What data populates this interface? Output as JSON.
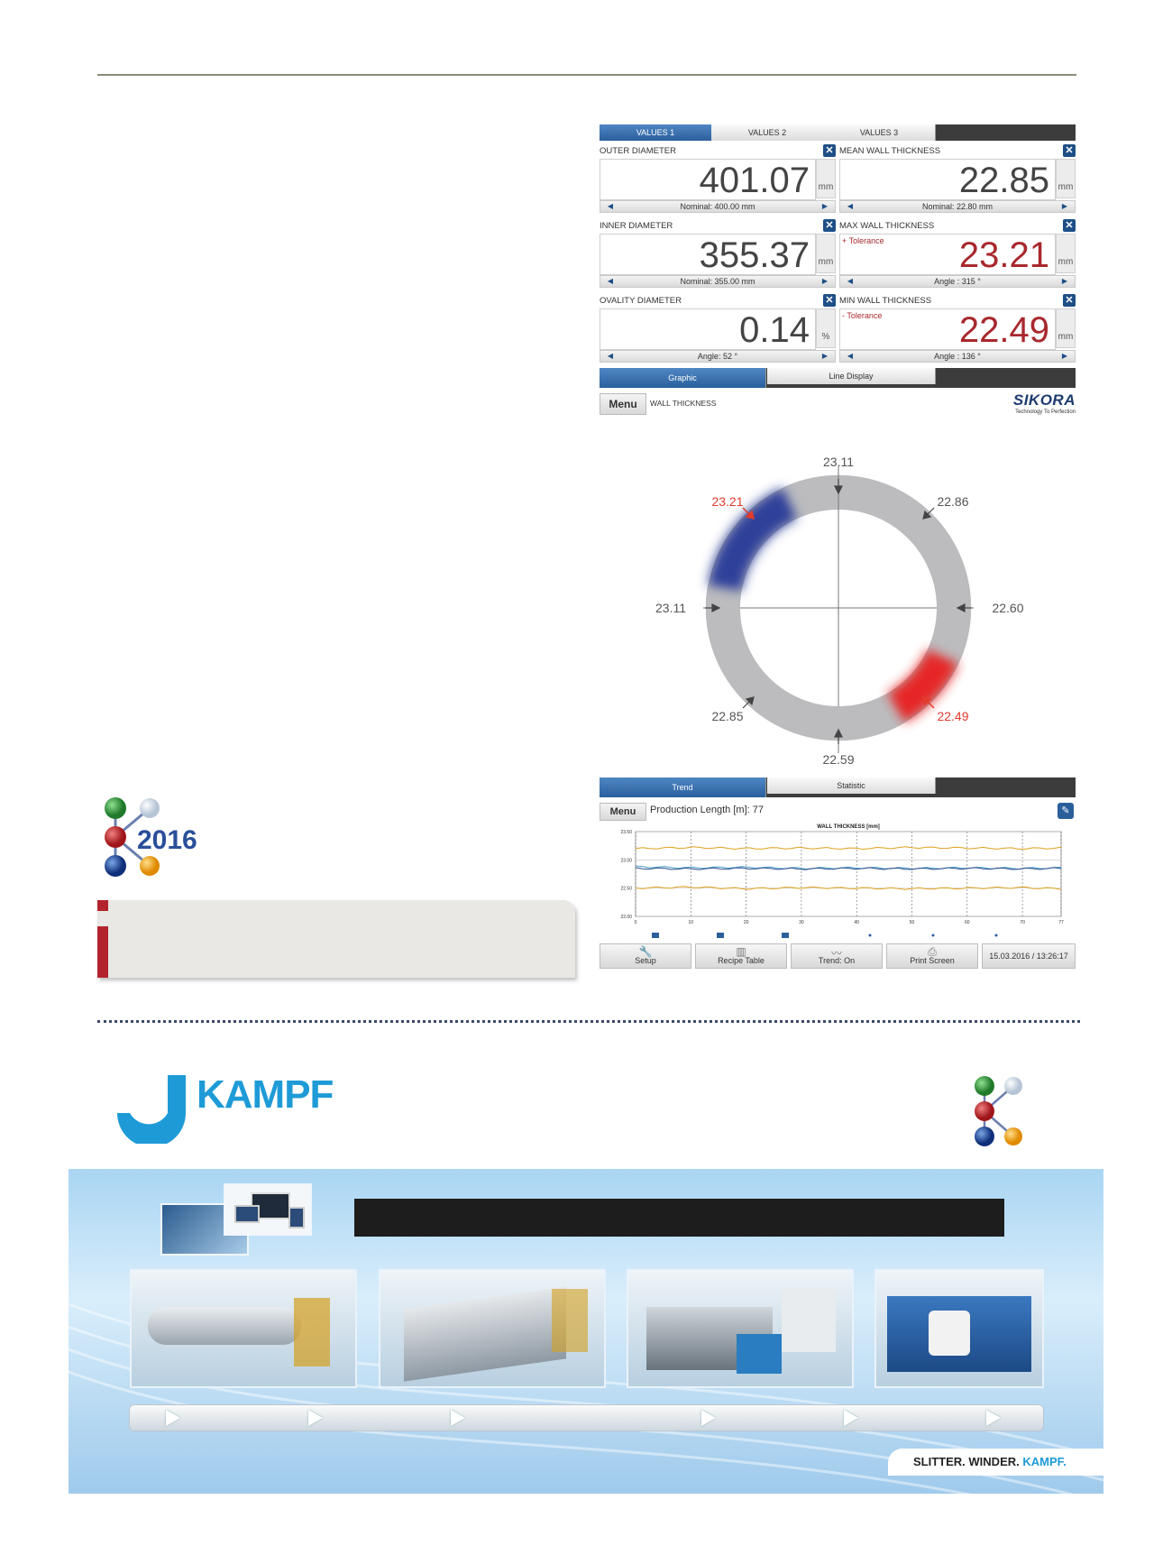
{
  "values_panel": {
    "tabs": [
      "VALUES 1",
      "VALUES 2",
      "VALUES 3"
    ],
    "boxes": [
      {
        "label": "OUTER DIAMETER",
        "value": "401.07",
        "unit": "mm",
        "sub": "Nominal: 400.00 mm",
        "tolerance": ""
      },
      {
        "label": "MEAN WALL THICKNESS",
        "value": "22.85",
        "unit": "mm",
        "sub": "Nominal: 22.80 mm",
        "tolerance": ""
      },
      {
        "label": "INNER DIAMETER",
        "value": "355.37",
        "unit": "mm",
        "sub": "Nominal: 355.00 mm",
        "tolerance": ""
      },
      {
        "label": "MAX WALL THICKNESS",
        "value": "23.21",
        "unit": "mm",
        "sub": "Angle : 315 °",
        "tolerance": "+ Tolerance"
      },
      {
        "label": "OVALITY DIAMETER",
        "value": "0.14",
        "unit": "%",
        "sub": "Angle: 52 °",
        "tolerance": ""
      },
      {
        "label": "MIN WALL THICKNESS",
        "value": "22.49",
        "unit": "mm",
        "sub": "Angle : 136 °",
        "tolerance": "- Tolerance"
      }
    ],
    "bottom_tabs": [
      "Graphic",
      "Line Display"
    ],
    "menu": "Menu",
    "menu_label": "WALL THICKNESS",
    "brand": "SIKORA",
    "brand_tagline": "Technology To Perfection",
    "close_glyph": "✕"
  },
  "ring": {
    "labels": [
      "23.11",
      "22.86",
      "22.60",
      "22.49",
      "22.59",
      "22.85",
      "23.11",
      "23.21"
    ],
    "max_color": "#2f3f9a",
    "min_color": "#e62626",
    "ring_color": "#bcbcbf"
  },
  "trend_panel": {
    "tabs": [
      "Trend",
      "Statistic"
    ],
    "menu": "Menu",
    "production_length": "Production Length [m]: 77",
    "plot_title": "WALL THICKNESS [mm]",
    "y_ticks": [
      "23.50",
      "23.00",
      "22.50",
      "22.00"
    ],
    "x_ticks": [
      "0",
      "10",
      "20",
      "30",
      "40",
      "50",
      "60",
      "70",
      "77"
    ],
    "tools": [
      "Setup",
      "Recipe Table",
      "Trend: On",
      "Print Screen"
    ],
    "timestamp": "15.03.2016 / 13:26:17"
  },
  "k_logo": {
    "year": "2016"
  },
  "kampf": {
    "name": "KAMPF"
  },
  "banner": {
    "slogan_1": "SLITTER.",
    "slogan_2": "WINDER.",
    "slogan_3": "KAMPF."
  },
  "chart_data": {
    "type": "line",
    "title": "WALL THICKNESS [mm]",
    "xlabel": "",
    "ylabel": "",
    "x": [
      0,
      10,
      20,
      30,
      40,
      50,
      60,
      70,
      77
    ],
    "ylim": [
      22.0,
      23.5
    ],
    "series": [
      {
        "values": [
          23.2,
          23.22,
          23.2,
          23.21,
          23.2,
          23.22,
          23.21,
          23.2,
          23.21
        ]
      },
      {
        "values": [
          22.88,
          22.86,
          22.87,
          22.85,
          22.86,
          22.85,
          22.86,
          22.85,
          22.86
        ]
      },
      {
        "values": [
          22.85,
          22.84,
          22.85,
          22.84,
          22.85,
          22.84,
          22.85,
          22.84,
          22.85
        ]
      },
      {
        "values": [
          22.5,
          22.52,
          22.49,
          22.51,
          22.5,
          22.49,
          22.5,
          22.51,
          22.49
        ]
      }
    ]
  }
}
